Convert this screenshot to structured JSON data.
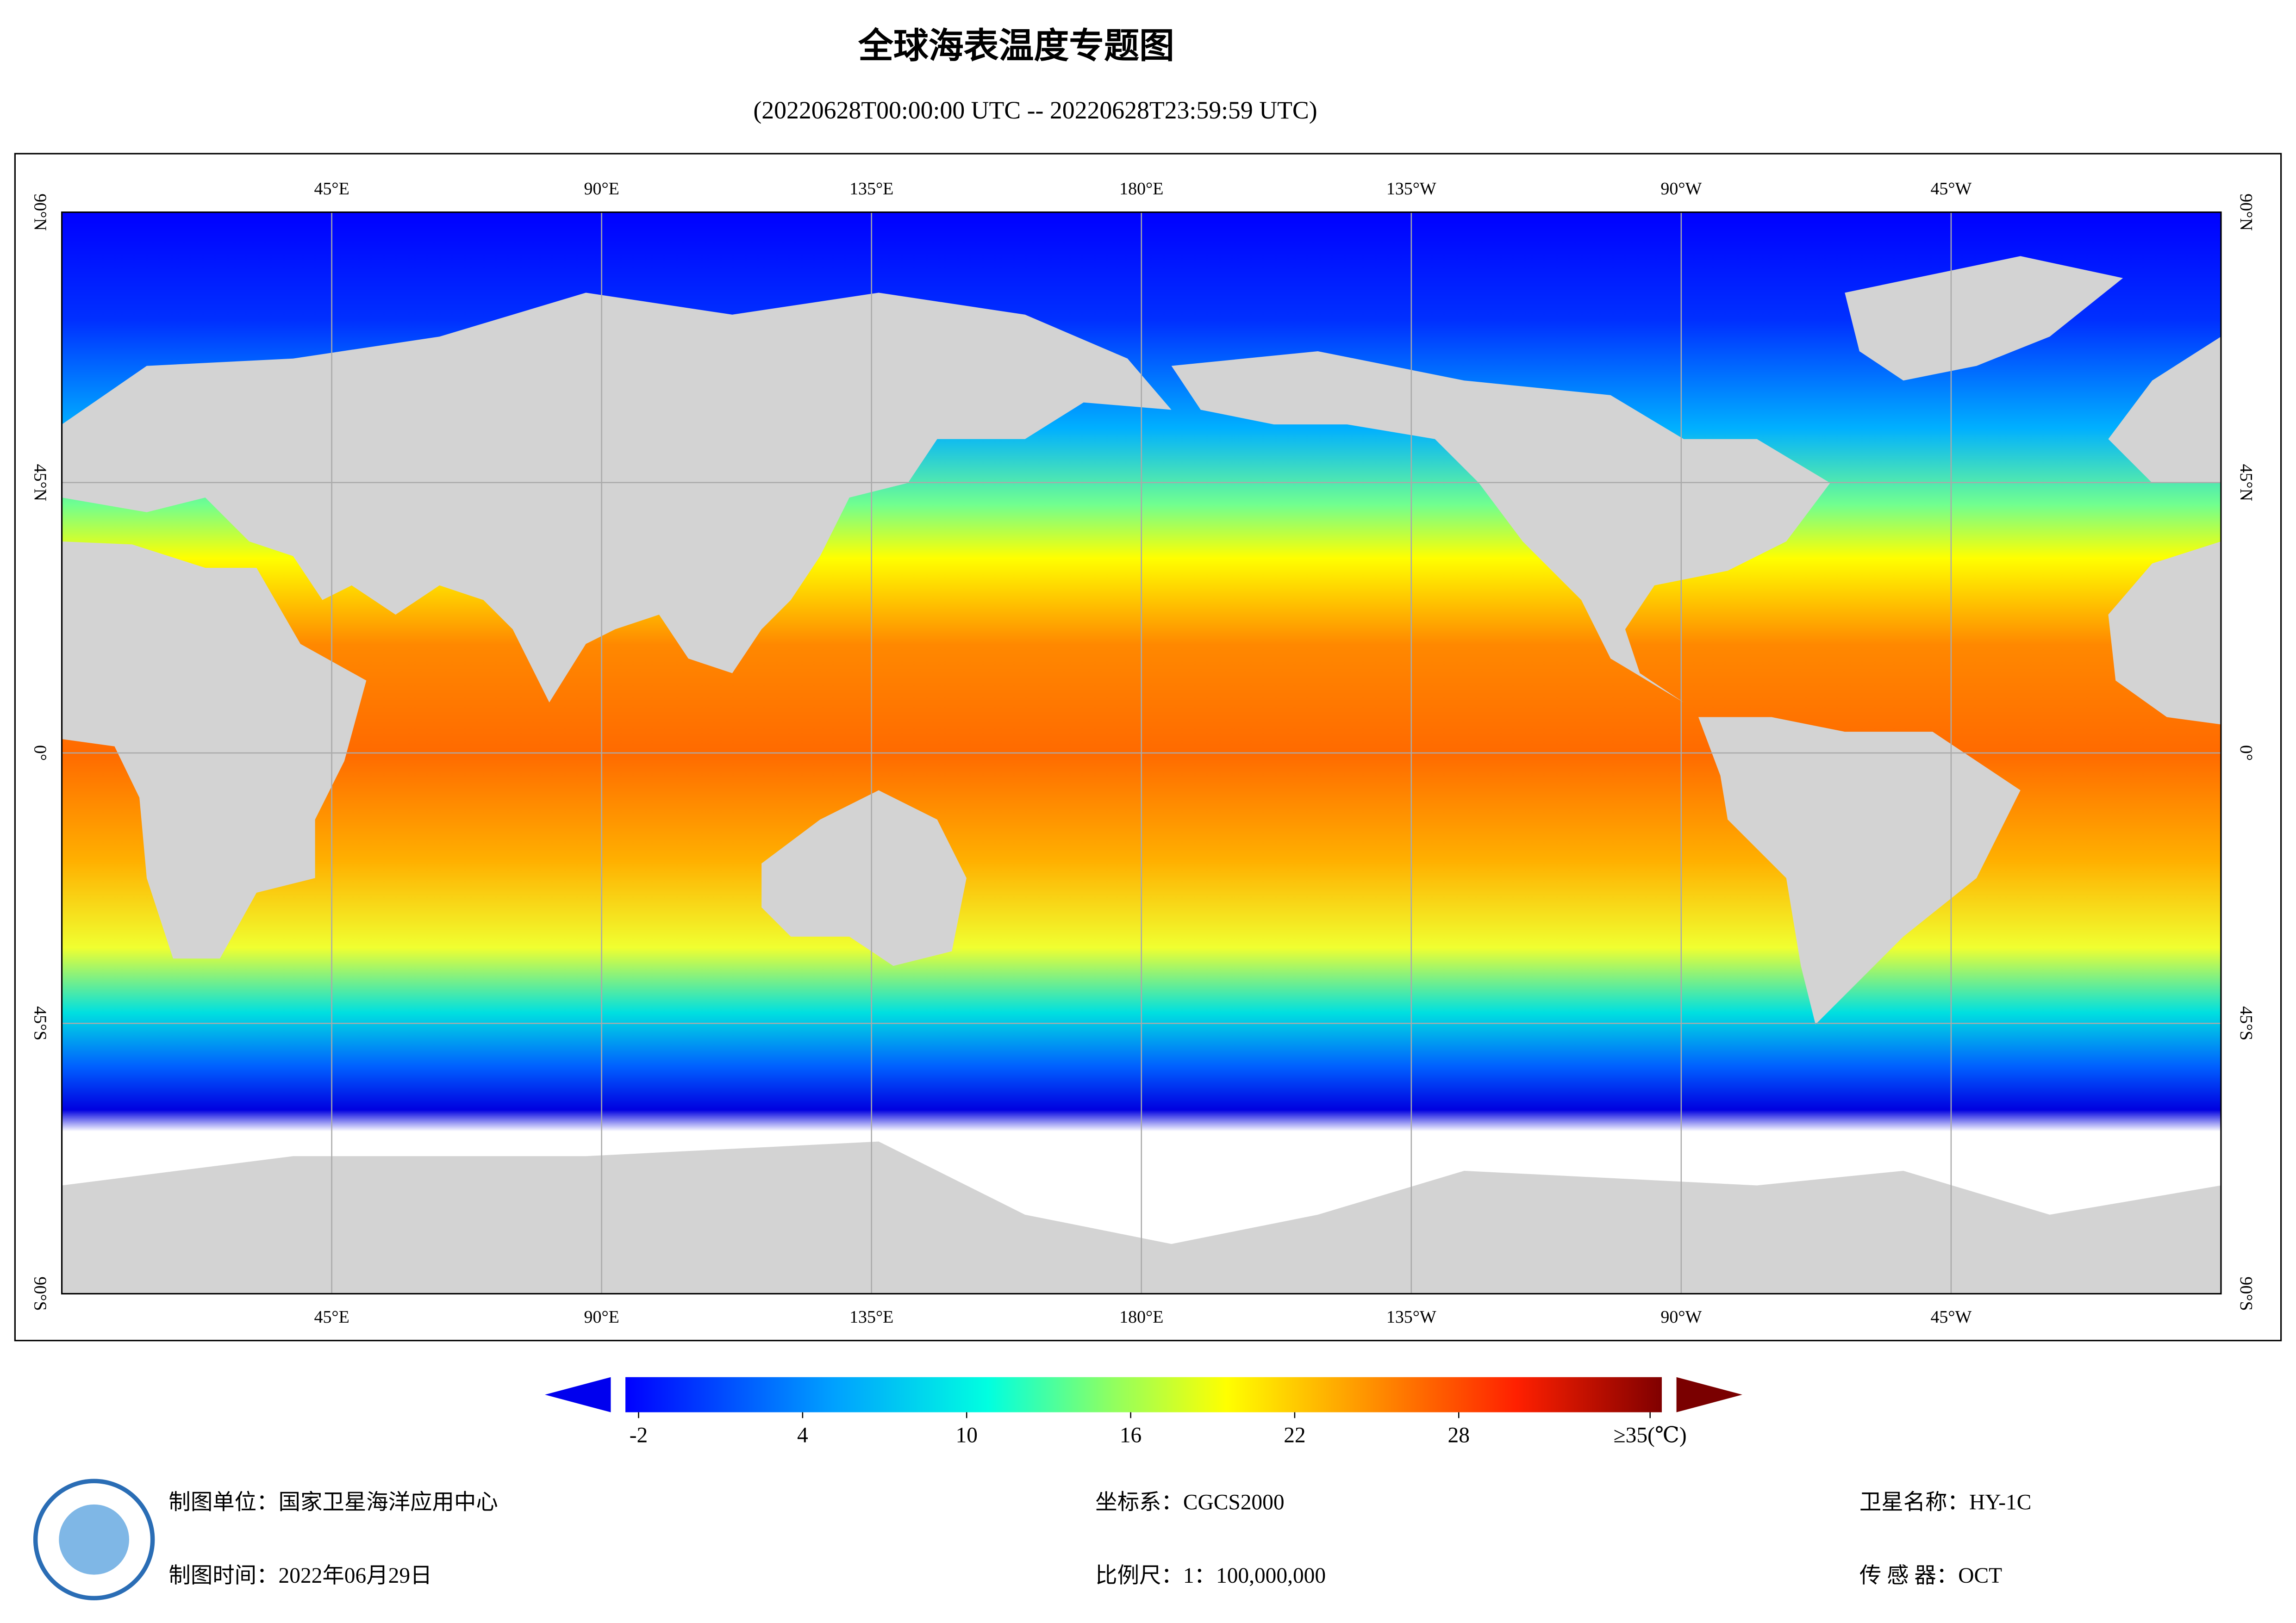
{
  "header": {
    "title": "全球海表温度专题图",
    "subtitle": "(20220628T00:00:00 UTC -- 20220628T23:59:59 UTC)"
  },
  "map": {
    "lon_labels": [
      "45°E",
      "90°E",
      "135°E",
      "180°E",
      "135°W",
      "90°W",
      "45°W"
    ],
    "lat_labels": [
      "90°N",
      "45°N",
      "0°",
      "45°S",
      "90°S"
    ]
  },
  "colorbar": {
    "lim": [
      -2,
      35
    ],
    "ticks": [
      -2,
      4,
      10,
      16,
      22,
      28,
      {
        "value": 35,
        "label": "≥35(℃)"
      }
    ]
  },
  "footer": {
    "producer": "制图单位：国家卫星海洋应用中心",
    "date": "制图时间：2022年06月29日",
    "crs": "坐标系：CGCS2000",
    "scale": "比例尺：1：100,000,000",
    "satellite": "卫星名称：HY-1C",
    "sensor": "传 感 器：OCT"
  }
}
